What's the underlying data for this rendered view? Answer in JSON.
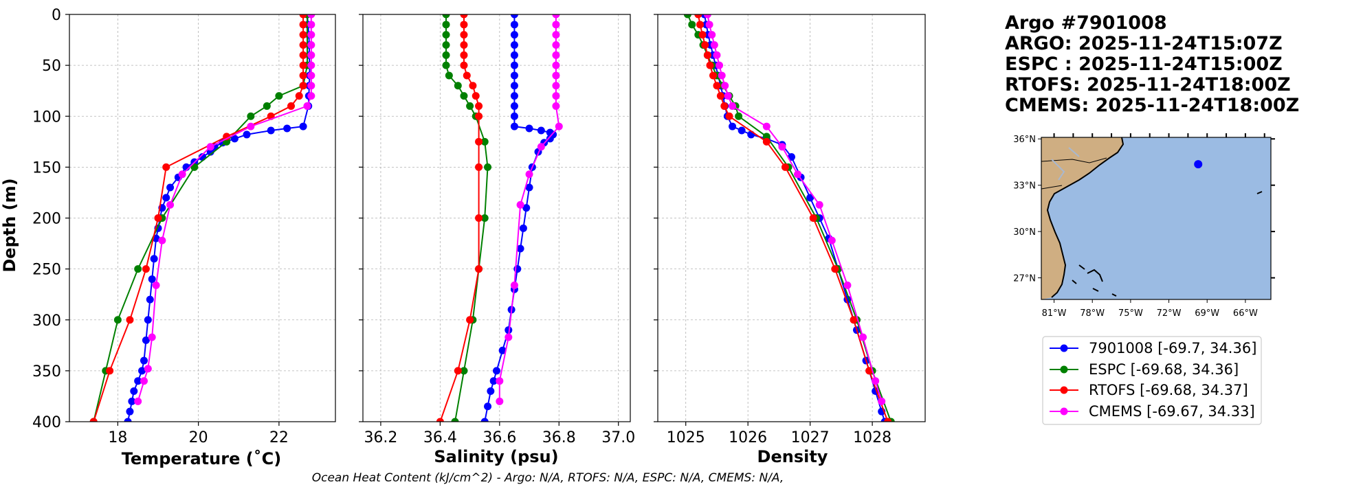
{
  "colors": {
    "argo": "#0000ff",
    "espc": "#008000",
    "rtofs": "#ff0000",
    "cmems": "#ff00ff",
    "ocean": "#9bbbe3",
    "land": "#cfae82"
  },
  "chart_data": [
    {
      "type": "line",
      "id": "temperature",
      "xlabel": "Temperature (˚C)",
      "ylabel": "Depth (m)",
      "xlim": [
        16.8,
        23.4
      ],
      "ylim": [
        400,
        0
      ],
      "xticks": [
        18,
        20,
        22
      ],
      "xtick_labels": [
        "18",
        "20",
        "22"
      ],
      "yticks": [
        0,
        50,
        100,
        150,
        200,
        250,
        300,
        350,
        400
      ],
      "ytick_labels": [
        "0",
        "50",
        "100",
        "150",
        "200",
        "250",
        "300",
        "350",
        "400"
      ],
      "series": [
        {
          "name": "7901008",
          "color": "#0000ff",
          "x": [
            22.7,
            22.72,
            22.74,
            22.75,
            22.75,
            22.76,
            22.76,
            22.75,
            22.74,
            22.73,
            22.6,
            22.2,
            21.8,
            21.2,
            20.9,
            20.6,
            20.4,
            20.3,
            20.1,
            19.9,
            19.7,
            19.5,
            19.3,
            19.2,
            19.1,
            19.05,
            19.0,
            18.95,
            18.9,
            18.85,
            18.8,
            18.75,
            18.7,
            18.65,
            18.6,
            18.5,
            18.4,
            18.35,
            18.3,
            18.25
          ],
          "y": [
            0,
            10,
            20,
            30,
            40,
            50,
            60,
            70,
            80,
            90,
            110,
            112,
            114,
            118,
            122,
            126,
            130,
            135,
            140,
            145,
            150,
            160,
            170,
            180,
            190,
            200,
            210,
            220,
            240,
            260,
            280,
            300,
            320,
            340,
            350,
            360,
            370,
            380,
            390,
            400
          ]
        },
        {
          "name": "ESPC",
          "color": "#008000",
          "x": [
            22.7,
            22.7,
            22.6,
            22.0,
            21.7,
            21.3,
            20.7,
            19.9,
            19.1,
            18.5,
            18.0,
            17.7,
            17.4
          ],
          "y": [
            0,
            50,
            70,
            80,
            90,
            100,
            125,
            150,
            200,
            250,
            300,
            350,
            400
          ]
        },
        {
          "name": "RTOFS",
          "color": "#ff0000",
          "x": [
            22.6,
            22.6,
            22.6,
            22.6,
            22.6,
            22.6,
            22.6,
            22.6,
            22.5,
            22.3,
            21.8,
            20.7,
            19.2,
            19.0,
            18.7,
            18.3,
            17.8,
            17.4
          ],
          "y": [
            0,
            10,
            20,
            30,
            40,
            50,
            60,
            70,
            80,
            90,
            100,
            120,
            150,
            200,
            250,
            300,
            350,
            400
          ]
        },
        {
          "name": "CMEMS",
          "color": "#ff00ff",
          "x": [
            22.8,
            22.8,
            22.8,
            22.8,
            22.8,
            22.8,
            22.8,
            22.8,
            22.8,
            22.7,
            21.3,
            20.3,
            19.6,
            19.3,
            19.1,
            18.95,
            18.85,
            18.75,
            18.65,
            18.5
          ],
          "y": [
            0,
            10,
            20,
            30,
            40,
            50,
            60,
            70,
            80,
            90,
            110,
            130,
            157,
            187,
            222,
            266,
            317,
            348,
            360,
            380
          ]
        }
      ]
    },
    {
      "type": "line",
      "id": "salinity",
      "xlabel": "Salinity (psu)",
      "xlim": [
        36.14,
        37.04
      ],
      "ylim": [
        400,
        0
      ],
      "xticks": [
        36.2,
        36.4,
        36.6,
        36.8,
        37.0
      ],
      "xtick_labels": [
        "36.2",
        "36.4",
        "36.6",
        "36.8",
        "37.0"
      ],
      "series": [
        {
          "name": "7901008",
          "color": "#0000ff",
          "x": [
            36.65,
            36.65,
            36.65,
            36.65,
            36.65,
            36.65,
            36.65,
            36.65,
            36.65,
            36.65,
            36.65,
            36.65,
            36.7,
            36.74,
            36.77,
            36.78,
            36.77,
            36.75,
            36.73,
            36.71,
            36.7,
            36.69,
            36.68,
            36.67,
            36.66,
            36.65,
            36.64,
            36.63,
            36.61,
            36.59,
            36.58,
            36.57,
            36.56,
            36.55
          ],
          "y": [
            0,
            10,
            20,
            30,
            40,
            50,
            60,
            70,
            80,
            90,
            100,
            110,
            112,
            114,
            116,
            118,
            122,
            126,
            135,
            150,
            170,
            190,
            210,
            230,
            250,
            270,
            290,
            310,
            330,
            350,
            360,
            370,
            385,
            400
          ]
        },
        {
          "name": "ESPC",
          "color": "#008000",
          "x": [
            36.42,
            36.42,
            36.42,
            36.42,
            36.42,
            36.42,
            36.43,
            36.46,
            36.48,
            36.5,
            36.52,
            36.55,
            36.56,
            36.55,
            36.53,
            36.51,
            36.48,
            36.45
          ],
          "y": [
            0,
            10,
            20,
            30,
            40,
            50,
            60,
            70,
            80,
            90,
            100,
            125,
            150,
            200,
            250,
            300,
            350,
            400
          ]
        },
        {
          "name": "RTOFS",
          "color": "#ff0000",
          "x": [
            36.48,
            36.48,
            36.48,
            36.48,
            36.48,
            36.48,
            36.49,
            36.51,
            36.52,
            36.53,
            36.53,
            36.53,
            36.53,
            36.53,
            36.53,
            36.5,
            36.46,
            36.4
          ],
          "y": [
            0,
            10,
            20,
            30,
            40,
            50,
            60,
            70,
            80,
            90,
            100,
            125,
            150,
            200,
            250,
            300,
            350,
            400
          ]
        },
        {
          "name": "CMEMS",
          "color": "#ff00ff",
          "x": [
            36.79,
            36.79,
            36.79,
            36.79,
            36.79,
            36.79,
            36.79,
            36.79,
            36.79,
            36.79,
            36.8,
            36.74,
            36.7,
            36.67,
            36.65,
            36.63,
            36.6,
            36.6
          ],
          "y": [
            0,
            10,
            20,
            30,
            40,
            50,
            60,
            70,
            80,
            90,
            110,
            130,
            157,
            187,
            266,
            317,
            360,
            380
          ]
        }
      ]
    },
    {
      "type": "line",
      "id": "density",
      "xlabel": "Density",
      "xlim": [
        1024.55,
        1028.85
      ],
      "ylim": [
        400,
        0
      ],
      "xticks": [
        1025,
        1026,
        1027,
        1028
      ],
      "xtick_labels": [
        "1025",
        "1026",
        "1027",
        "1028"
      ],
      "series": [
        {
          "name": "7901008",
          "color": "#0000ff",
          "x": [
            1025.3,
            1025.33,
            1025.36,
            1025.4,
            1025.44,
            1025.48,
            1025.52,
            1025.56,
            1025.6,
            1025.63,
            1025.67,
            1025.75,
            1025.9,
            1026.05,
            1026.3,
            1026.55,
            1026.7,
            1026.85,
            1027.0,
            1027.15,
            1027.3,
            1027.45,
            1027.6,
            1027.75,
            1027.9,
            1028.05,
            1028.15,
            1028.2
          ],
          "y": [
            0,
            10,
            20,
            30,
            40,
            50,
            60,
            70,
            80,
            90,
            100,
            110,
            114,
            118,
            122,
            128,
            140,
            160,
            180,
            200,
            220,
            250,
            280,
            310,
            340,
            370,
            390,
            400
          ]
        },
        {
          "name": "ESPC",
          "color": "#008000",
          "x": [
            1025.03,
            1025.1,
            1025.2,
            1025.28,
            1025.35,
            1025.42,
            1025.5,
            1025.6,
            1025.7,
            1025.8,
            1025.85,
            1026.3,
            1026.65,
            1027.1,
            1027.45,
            1027.75,
            1028.0,
            1028.3
          ],
          "y": [
            0,
            10,
            20,
            30,
            40,
            50,
            60,
            70,
            80,
            90,
            100,
            120,
            150,
            200,
            250,
            300,
            350,
            400
          ]
        },
        {
          "name": "RTOFS",
          "color": "#ff0000",
          "x": [
            1025.2,
            1025.23,
            1025.27,
            1025.31,
            1025.35,
            1025.39,
            1025.44,
            1025.5,
            1025.56,
            1025.62,
            1025.7,
            1026.3,
            1026.6,
            1027.05,
            1027.4,
            1027.7,
            1027.95,
            1028.25
          ],
          "y": [
            0,
            10,
            20,
            30,
            40,
            50,
            60,
            70,
            80,
            90,
            100,
            125,
            150,
            200,
            250,
            300,
            350,
            400
          ]
        },
        {
          "name": "CMEMS",
          "color": "#ff00ff",
          "x": [
            1025.35,
            1025.38,
            1025.42,
            1025.46,
            1025.5,
            1025.54,
            1025.58,
            1025.63,
            1025.68,
            1025.75,
            1026.3,
            1026.55,
            1026.8,
            1027.15,
            1027.35,
            1027.6,
            1027.85,
            1028.05,
            1028.15
          ],
          "y": [
            0,
            10,
            20,
            30,
            40,
            50,
            60,
            70,
            80,
            90,
            110,
            130,
            157,
            187,
            222,
            266,
            317,
            360,
            380
          ]
        }
      ]
    }
  ],
  "title_lines": [
    "Argo #7901008",
    "ARGO: 2025-11-24T15:07Z",
    "ESPC : 2025-11-24T15:00Z",
    "RTOFS: 2025-11-24T18:00Z",
    "CMEMS: 2025-11-24T18:00Z"
  ],
  "map": {
    "lat_labels": [
      "36°N",
      "33°N",
      "30°N",
      "27°N"
    ],
    "lat_values": [
      36,
      33,
      30,
      27
    ],
    "lon_labels": [
      "81°W",
      "78°W",
      "75°W",
      "72°W",
      "69°W",
      "66°W"
    ],
    "lon_values": [
      -81,
      -78,
      -75,
      -72,
      -69,
      -66
    ],
    "extent": {
      "lon": [
        -82.0,
        -64.0
      ],
      "lat": [
        25.6,
        36.1
      ]
    },
    "float_position": {
      "lon": -69.7,
      "lat": 34.36
    }
  },
  "legend": [
    {
      "label": "7901008 [-69.7, 34.36]",
      "color": "#0000ff"
    },
    {
      "label": "ESPC [-69.68, 34.36]",
      "color": "#008000"
    },
    {
      "label": "RTOFS [-69.68, 34.37]",
      "color": "#ff0000"
    },
    {
      "label": "CMEMS [-69.67, 34.33]",
      "color": "#ff00ff"
    }
  ],
  "footer": "Ocean Heat Content (kJ/cm^2) - Argo: N/A,  RTOFS: N/A,  ESPC: N/A,  CMEMS: N/A,"
}
